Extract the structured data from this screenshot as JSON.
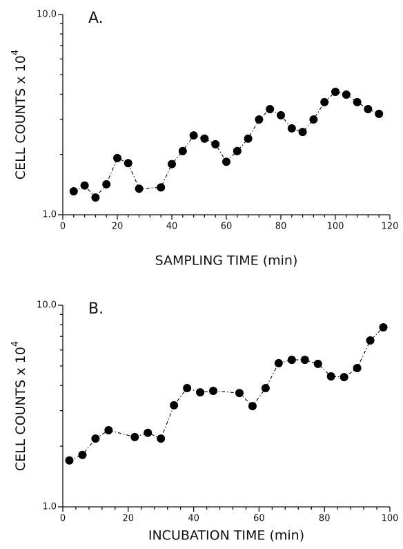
{
  "chart_data": [
    {
      "type": "line",
      "panel_label": "A.",
      "xlabel": "SAMPLING TIME (min)",
      "ylabel": "CELL COUNTS x 10",
      "ylabel_sup": "4",
      "log_y": true,
      "color": "#000000",
      "x": [
        4,
        8,
        12,
        16,
        20,
        24,
        28,
        36,
        40,
        44,
        48,
        52,
        56,
        60,
        64,
        68,
        72,
        76,
        80,
        84,
        88,
        92,
        96,
        100,
        104,
        108,
        112,
        116
      ],
      "values": [
        1.31,
        1.4,
        1.22,
        1.42,
        1.92,
        1.81,
        1.35,
        1.37,
        1.79,
        2.08,
        2.49,
        2.4,
        2.25,
        1.84,
        2.08,
        2.4,
        2.99,
        3.37,
        3.14,
        2.7,
        2.59,
        2.99,
        3.65,
        4.11,
        3.98,
        3.65,
        3.37,
        3.19
      ],
      "xlim": [
        0,
        120
      ],
      "xticks": [
        0,
        20,
        40,
        60,
        80,
        100,
        120
      ],
      "ylim": [
        1,
        10
      ],
      "yticks": [
        {
          "value": 1,
          "label": "1.0"
        },
        {
          "value": 10,
          "label": "10.0"
        }
      ]
    },
    {
      "type": "line",
      "panel_label": "B.",
      "xlabel": "INCUBATION TIME (min)",
      "ylabel": "CELL COUNTS x 10",
      "ylabel_sup": "4",
      "log_y": true,
      "color": "#000000",
      "x": [
        2,
        6,
        10,
        14,
        22,
        26,
        30,
        34,
        38,
        42,
        46,
        54,
        58,
        62,
        66,
        70,
        74,
        78,
        82,
        86,
        90,
        94,
        98
      ],
      "values": [
        1.7,
        1.81,
        2.18,
        2.4,
        2.22,
        2.33,
        2.18,
        3.19,
        3.88,
        3.7,
        3.76,
        3.67,
        3.16,
        3.88,
        5.16,
        5.36,
        5.36,
        5.12,
        4.44,
        4.4,
        4.88,
        6.69,
        7.77
      ],
      "xlim": [
        0,
        100
      ],
      "xticks": [
        0,
        20,
        40,
        60,
        80,
        100
      ],
      "ylim": [
        1,
        10
      ],
      "yticks": [
        {
          "value": 1,
          "label": "1.0"
        },
        {
          "value": 10,
          "label": "10.0"
        }
      ]
    }
  ]
}
